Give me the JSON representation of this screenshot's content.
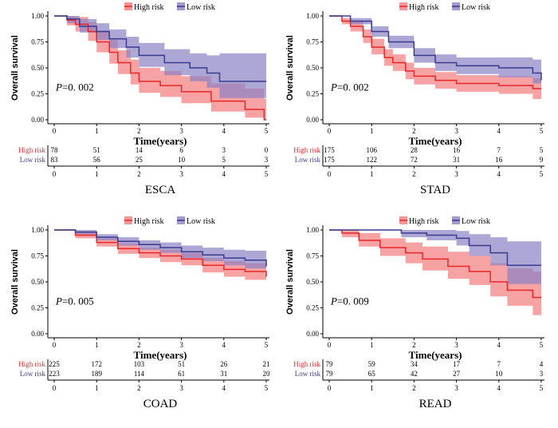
{
  "chart_data": [
    {
      "type": "line",
      "title": "ESCA",
      "xlabel": "Time(years)",
      "ylabel": "Overall survival",
      "xlim": [
        0,
        5
      ],
      "ylim": [
        0,
        1
      ],
      "xticks": [
        "0",
        "1",
        "2",
        "3",
        "4",
        "5"
      ],
      "yticks": [
        "0.00",
        "0.25",
        "0.50",
        "0.75",
        "1.00"
      ],
      "pvalue_label": "P",
      "pvalue_text": "=0. 002",
      "legend": [
        "High risk",
        "Low risk"
      ],
      "legend_position": "top-center",
      "series": [
        {
          "name": "High risk",
          "color": "#e8262a",
          "fill": "#f47a7c",
          "x": [
            0,
            0.3,
            0.5,
            0.8,
            1.0,
            1.3,
            1.5,
            1.8,
            2.0,
            2.5,
            3.0,
            3.7,
            4.5,
            4.95,
            5
          ],
          "y": [
            1,
            0.96,
            0.92,
            0.85,
            0.75,
            0.65,
            0.55,
            0.45,
            0.37,
            0.33,
            0.27,
            0.18,
            0.1,
            0.0,
            0.0
          ],
          "lower": [
            1,
            0.91,
            0.85,
            0.76,
            0.65,
            0.54,
            0.44,
            0.34,
            0.26,
            0.22,
            0.16,
            0.08,
            0.02,
            0.0,
            0.0
          ],
          "upper": [
            1,
            1,
            0.99,
            0.94,
            0.86,
            0.77,
            0.67,
            0.58,
            0.5,
            0.47,
            0.42,
            0.35,
            0.3,
            0.2,
            0.2
          ]
        },
        {
          "name": "Low risk",
          "color": "#3b3a8f",
          "fill": "#8a82c4",
          "x": [
            0,
            0.3,
            0.6,
            1.0,
            1.3,
            1.7,
            2.0,
            2.6,
            3.2,
            3.6,
            3.9,
            5
          ],
          "y": [
            1,
            0.97,
            0.9,
            0.85,
            0.78,
            0.7,
            0.62,
            0.55,
            0.5,
            0.45,
            0.37,
            0.37
          ],
          "lower": [
            1,
            0.93,
            0.84,
            0.77,
            0.69,
            0.6,
            0.51,
            0.43,
            0.37,
            0.31,
            0.21,
            0.21
          ],
          "upper": [
            1,
            1,
            0.97,
            0.93,
            0.87,
            0.8,
            0.74,
            0.68,
            0.64,
            0.62,
            0.64,
            0.64
          ]
        }
      ],
      "risk_table": {
        "rows": [
          {
            "label": "High risk",
            "counts": [
              "78",
              "51",
              "14",
              "6",
              "3",
              "0"
            ]
          },
          {
            "label": "Low risk",
            "counts": [
              "83",
              "56",
              "25",
              "10",
              "5",
              "3"
            ]
          }
        ]
      }
    },
    {
      "type": "line",
      "title": "STAD",
      "xlabel": "Time(years)",
      "ylabel": "Overall survival",
      "xlim": [
        0,
        5
      ],
      "ylim": [
        0,
        1
      ],
      "xticks": [
        "0",
        "1",
        "2",
        "3",
        "4",
        "5"
      ],
      "yticks": [
        "0.00",
        "0.25",
        "0.50",
        "0.75",
        "1.00"
      ],
      "pvalue_label": "P",
      "pvalue_text": "=0. 002",
      "legend": [
        "High risk",
        "Low risk"
      ],
      "legend_position": "top-center",
      "series": [
        {
          "name": "High risk",
          "color": "#e8262a",
          "fill": "#f47a7c",
          "x": [
            0,
            0.3,
            0.5,
            0.8,
            1.0,
            1.3,
            1.5,
            1.8,
            2.0,
            2.5,
            3.0,
            4.0,
            4.8,
            5
          ],
          "y": [
            1,
            0.95,
            0.9,
            0.8,
            0.7,
            0.6,
            0.55,
            0.47,
            0.42,
            0.38,
            0.35,
            0.33,
            0.3,
            0.3
          ],
          "lower": [
            1,
            0.92,
            0.85,
            0.74,
            0.63,
            0.52,
            0.47,
            0.39,
            0.34,
            0.3,
            0.27,
            0.25,
            0.2,
            0.2
          ],
          "upper": [
            1,
            0.98,
            0.95,
            0.87,
            0.78,
            0.68,
            0.63,
            0.55,
            0.5,
            0.46,
            0.43,
            0.42,
            0.4,
            0.4
          ]
        },
        {
          "name": "Low risk",
          "color": "#3b3a8f",
          "fill": "#8a82c4",
          "x": [
            0,
            0.5,
            1.0,
            1.4,
            2.0,
            2.5,
            3.0,
            4.0,
            4.8,
            5
          ],
          "y": [
            1,
            0.95,
            0.85,
            0.75,
            0.62,
            0.55,
            0.52,
            0.5,
            0.45,
            0.38
          ],
          "lower": [
            1,
            0.92,
            0.8,
            0.69,
            0.55,
            0.47,
            0.44,
            0.41,
            0.35,
            0.28
          ],
          "upper": [
            1,
            0.98,
            0.9,
            0.81,
            0.69,
            0.63,
            0.6,
            0.6,
            0.58,
            0.55
          ]
        }
      ],
      "risk_table": {
        "rows": [
          {
            "label": "High risk",
            "counts": [
              "175",
              "106",
              "28",
              "16",
              "7",
              "5"
            ]
          },
          {
            "label": "Low risk",
            "counts": [
              "175",
              "122",
              "72",
              "31",
              "16",
              "9"
            ]
          }
        ]
      }
    },
    {
      "type": "line",
      "title": "COAD",
      "xlabel": "Time(years)",
      "ylabel": "Overall survival",
      "xlim": [
        0,
        5
      ],
      "ylim": [
        0,
        1
      ],
      "xticks": [
        "0",
        "1",
        "2",
        "3",
        "4",
        "5"
      ],
      "yticks": [
        "0.00",
        "0.25",
        "0.50",
        "0.75",
        "1.00"
      ],
      "pvalue_label": "P",
      "pvalue_text": "=0. 005",
      "legend": [
        "High risk",
        "Low risk"
      ],
      "legend_position": "top-center",
      "series": [
        {
          "name": "High risk",
          "color": "#e8262a",
          "fill": "#f47a7c",
          "x": [
            0,
            0.5,
            1.0,
            1.5,
            2.0,
            2.5,
            3.0,
            3.5,
            4.0,
            4.5,
            5
          ],
          "y": [
            1,
            0.95,
            0.88,
            0.82,
            0.78,
            0.75,
            0.72,
            0.66,
            0.62,
            0.6,
            0.55
          ],
          "lower": [
            1,
            0.92,
            0.84,
            0.77,
            0.73,
            0.69,
            0.66,
            0.59,
            0.55,
            0.52,
            0.45
          ],
          "upper": [
            1,
            0.98,
            0.92,
            0.87,
            0.83,
            0.81,
            0.78,
            0.73,
            0.7,
            0.68,
            0.66
          ]
        },
        {
          "name": "Low risk",
          "color": "#3b3a8f",
          "fill": "#8a82c4",
          "x": [
            0,
            0.5,
            1.0,
            1.5,
            2.0,
            2.5,
            3.0,
            3.5,
            4.0,
            4.5,
            5
          ],
          "y": [
            1,
            0.98,
            0.93,
            0.89,
            0.86,
            0.83,
            0.79,
            0.76,
            0.73,
            0.71,
            0.65
          ],
          "lower": [
            1,
            0.96,
            0.9,
            0.85,
            0.81,
            0.78,
            0.73,
            0.7,
            0.66,
            0.63,
            0.56
          ],
          "upper": [
            1,
            1,
            0.96,
            0.93,
            0.9,
            0.88,
            0.85,
            0.83,
            0.81,
            0.8,
            0.76
          ]
        }
      ],
      "risk_table": {
        "rows": [
          {
            "label": "High risk",
            "counts": [
              "225",
              "172",
              "103",
              "51",
              "26",
              "21"
            ]
          },
          {
            "label": "Low risk",
            "counts": [
              "223",
              "189",
              "114",
              "61",
              "31",
              "20"
            ]
          }
        ]
      }
    },
    {
      "type": "line",
      "title": "READ",
      "xlabel": "Time(years)",
      "ylabel": "Overall survival",
      "xlim": [
        0,
        5
      ],
      "ylim": [
        0,
        1
      ],
      "xticks": [
        "0",
        "1",
        "2",
        "3",
        "4",
        "5"
      ],
      "yticks": [
        "0.00",
        "0.25",
        "0.50",
        "0.75",
        "1.00"
      ],
      "pvalue_label": "P",
      "pvalue_text": "=0. 009",
      "legend": [
        "High risk",
        "Low risk"
      ],
      "legend_position": "top-center",
      "series": [
        {
          "name": "High risk",
          "color": "#e8262a",
          "fill": "#f47a7c",
          "x": [
            0,
            0.3,
            0.7,
            1.2,
            1.8,
            2.2,
            2.8,
            3.3,
            3.8,
            4.2,
            4.8,
            5
          ],
          "y": [
            1,
            0.97,
            0.9,
            0.83,
            0.78,
            0.72,
            0.65,
            0.6,
            0.5,
            0.42,
            0.35,
            0.35
          ],
          "lower": [
            1,
            0.93,
            0.84,
            0.75,
            0.68,
            0.61,
            0.53,
            0.47,
            0.36,
            0.27,
            0.18,
            0.18
          ],
          "upper": [
            1,
            1,
            0.97,
            0.92,
            0.88,
            0.84,
            0.79,
            0.75,
            0.68,
            0.63,
            0.6,
            0.6
          ]
        },
        {
          "name": "Low risk",
          "color": "#3b3a8f",
          "fill": "#8a82c4",
          "x": [
            0,
            1.5,
            1.7,
            2.3,
            3.0,
            3.3,
            3.8,
            4.2,
            5
          ],
          "y": [
            1,
            1,
            0.97,
            0.95,
            0.92,
            0.85,
            0.78,
            0.66,
            0.66
          ],
          "lower": [
            1,
            1,
            0.93,
            0.9,
            0.85,
            0.75,
            0.66,
            0.48,
            0.48
          ],
          "upper": [
            1,
            1,
            1,
            1,
            0.99,
            0.96,
            0.93,
            0.89,
            0.89
          ]
        }
      ],
      "risk_table": {
        "rows": [
          {
            "label": "High risk",
            "counts": [
              "79",
              "59",
              "34",
              "17",
              "7",
              "4"
            ]
          },
          {
            "label": "Low risk",
            "counts": [
              "79",
              "65",
              "42",
              "27",
              "10",
              "3"
            ]
          }
        ]
      }
    }
  ]
}
